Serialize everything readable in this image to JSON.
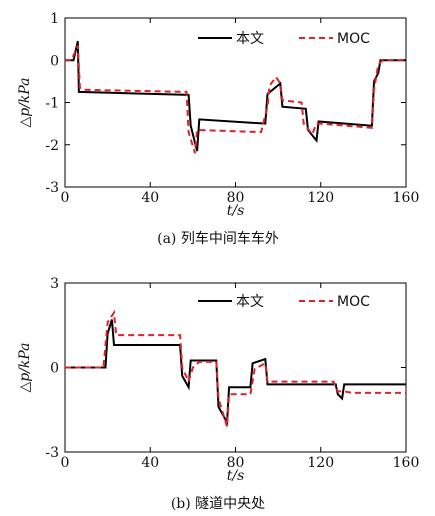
{
  "chart_data": [
    {
      "type": "line",
      "caption": "(a) 列车中间车车外",
      "xlabel": "t/s",
      "ylabel": "△p/kPa",
      "xlim": [
        0,
        160
      ],
      "ylim": [
        -3,
        1
      ],
      "xticks": [
        "0",
        "40",
        "80",
        "120",
        "160"
      ],
      "yticks": [
        "-3",
        "-2",
        "-1",
        "0",
        "1"
      ],
      "legend_position": "top-right",
      "series": [
        {
          "name": "本文",
          "color": "#000000",
          "dash": "solid",
          "points": [
            [
              0,
              0
            ],
            [
              4,
              0
            ],
            [
              6,
              0.45
            ],
            [
              6.5,
              -0.75
            ],
            [
              58,
              -0.82
            ],
            [
              59,
              -1.55
            ],
            [
              62,
              -2.15
            ],
            [
              63,
              -1.4
            ],
            [
              94,
              -1.5
            ],
            [
              95,
              -0.8
            ],
            [
              101,
              -0.55
            ],
            [
              102,
              -1.1
            ],
            [
              113,
              -1.15
            ],
            [
              114,
              -1.65
            ],
            [
              118,
              -1.9
            ],
            [
              119,
              -1.45
            ],
            [
              144,
              -1.55
            ],
            [
              145,
              -0.5
            ],
            [
              147,
              -0.3
            ],
            [
              148,
              0
            ],
            [
              160,
              0
            ]
          ]
        },
        {
          "name": "MOC",
          "color": "#e0202a",
          "dash": "dashed",
          "points": [
            [
              0,
              0
            ],
            [
              3,
              0
            ],
            [
              6,
              0.35
            ],
            [
              7,
              -0.65
            ],
            [
              9,
              -0.7
            ],
            [
              57,
              -0.75
            ],
            [
              58,
              -1.7
            ],
            [
              61,
              -2.2
            ],
            [
              62,
              -1.65
            ],
            [
              92,
              -1.7
            ],
            [
              95,
              -1.1
            ],
            [
              96,
              -0.6
            ],
            [
              99,
              -0.4
            ],
            [
              101,
              -0.55
            ],
            [
              102,
              -0.95
            ],
            [
              111,
              -1.0
            ],
            [
              112,
              -1.5
            ],
            [
              116,
              -1.75
            ],
            [
              118,
              -1.5
            ],
            [
              120,
              -1.5
            ],
            [
              144,
              -1.6
            ],
            [
              145,
              -0.7
            ],
            [
              147,
              -0.1
            ],
            [
              149,
              0
            ],
            [
              160,
              0
            ]
          ]
        }
      ]
    },
    {
      "type": "line",
      "caption": "(b) 隧道中央处",
      "xlabel": "t/s",
      "ylabel": "△p/kPa",
      "xlim": [
        0,
        160
      ],
      "ylim": [
        -3,
        3
      ],
      "xticks": [
        "0",
        "40",
        "80",
        "120",
        "160"
      ],
      "yticks": [
        "-3",
        "0",
        "3"
      ],
      "legend_position": "top-right",
      "series": [
        {
          "name": "本文",
          "color": "#000000",
          "dash": "solid",
          "points": [
            [
              0,
              0
            ],
            [
              19,
              0
            ],
            [
              20,
              1.2
            ],
            [
              22,
              1.7
            ],
            [
              23,
              0.8
            ],
            [
              54,
              0.8
            ],
            [
              55,
              -0.3
            ],
            [
              58,
              -0.7
            ],
            [
              59,
              0.25
            ],
            [
              71,
              0.25
            ],
            [
              72,
              -1.4
            ],
            [
              76,
              -1.95
            ],
            [
              77,
              -0.7
            ],
            [
              87,
              -0.7
            ],
            [
              88,
              0.15
            ],
            [
              94,
              0.3
            ],
            [
              95,
              -0.6
            ],
            [
              127,
              -0.6
            ],
            [
              128,
              -0.95
            ],
            [
              130,
              -1.1
            ],
            [
              131,
              -0.6
            ],
            [
              160,
              -0.6
            ]
          ]
        },
        {
          "name": "MOC",
          "color": "#e0202a",
          "dash": "dashed",
          "points": [
            [
              0,
              0
            ],
            [
              18,
              0
            ],
            [
              20,
              1.6
            ],
            [
              23,
              1.95
            ],
            [
              24,
              1.15
            ],
            [
              54,
              1.15
            ],
            [
              55,
              0.0
            ],
            [
              58,
              -0.5
            ],
            [
              60,
              0.0
            ],
            [
              63,
              0.2
            ],
            [
              71,
              0.2
            ],
            [
              72,
              -1.1
            ],
            [
              76,
              -2.1
            ],
            [
              77,
              -0.95
            ],
            [
              87,
              -0.95
            ],
            [
              89,
              -0.05
            ],
            [
              94,
              0.15
            ],
            [
              95,
              -0.5
            ],
            [
              126,
              -0.5
            ],
            [
              128,
              -0.85
            ],
            [
              131,
              -0.85
            ],
            [
              135,
              -0.9
            ],
            [
              160,
              -0.9
            ]
          ]
        }
      ]
    }
  ]
}
